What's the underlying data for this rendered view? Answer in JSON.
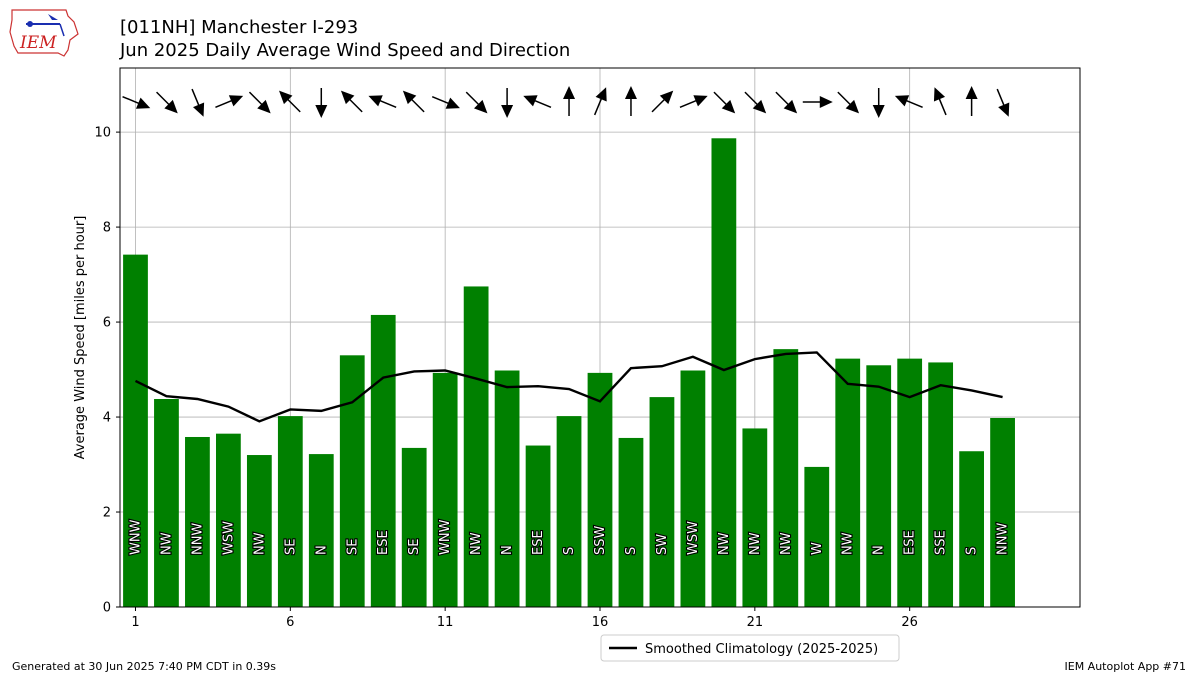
{
  "header": {
    "title_line1": "[011NH] Manchester I-293",
    "title_line2": "Jun 2025 Daily Average Wind Speed and Direction",
    "logo_text": "IEM"
  },
  "footer": {
    "left": "Generated at 30 Jun 2025 7:40 PM CDT in 0.39s",
    "right": "IEM Autoplot App #71"
  },
  "chart_data": {
    "type": "bar",
    "ylabel": "Average Wind Speed [miles per hour]",
    "xlabel": "",
    "xlim": [
      0.5,
      31.5
    ],
    "ylim": [
      0,
      11.35
    ],
    "xticks": [
      1,
      6,
      11,
      16,
      21,
      26
    ],
    "yticks": [
      0,
      2,
      4,
      6,
      8,
      10
    ],
    "grid": true,
    "bar_color": "#008000",
    "line_color": "#000000",
    "legend": {
      "position": "bottom-center",
      "label": "Smoothed Climatology (2025-2025)"
    },
    "days": [
      1,
      2,
      3,
      4,
      5,
      6,
      7,
      8,
      9,
      10,
      11,
      12,
      13,
      14,
      15,
      16,
      17,
      18,
      19,
      20,
      21,
      22,
      23,
      24,
      25,
      26,
      27,
      28,
      29
    ],
    "speed": [
      7.42,
      4.38,
      3.58,
      3.65,
      3.2,
      4.02,
      3.22,
      5.3,
      6.15,
      3.35,
      4.93,
      6.75,
      4.98,
      3.4,
      4.02,
      4.93,
      3.56,
      4.42,
      4.98,
      9.87,
      3.76,
      5.43,
      2.95,
      5.23,
      5.09,
      5.23,
      5.15,
      3.28,
      3.98
    ],
    "direction": [
      "WNW",
      "NW",
      "NNW",
      "WSW",
      "NW",
      "SE",
      "N",
      "SE",
      "ESE",
      "SE",
      "WNW",
      "NW",
      "N",
      "ESE",
      "S",
      "SSW",
      "S",
      "SW",
      "WSW",
      "NW",
      "NW",
      "NW",
      "W",
      "NW",
      "N",
      "ESE",
      "SSE",
      "S",
      "NNW"
    ],
    "climatology": [
      4.76,
      4.44,
      4.38,
      4.22,
      3.91,
      4.16,
      4.13,
      4.31,
      4.83,
      4.96,
      4.98,
      4.81,
      4.63,
      4.65,
      4.59,
      4.33,
      5.03,
      5.07,
      5.27,
      4.99,
      5.22,
      5.33,
      5.36,
      4.7,
      4.64,
      4.42,
      4.67,
      4.56,
      4.42
    ]
  }
}
